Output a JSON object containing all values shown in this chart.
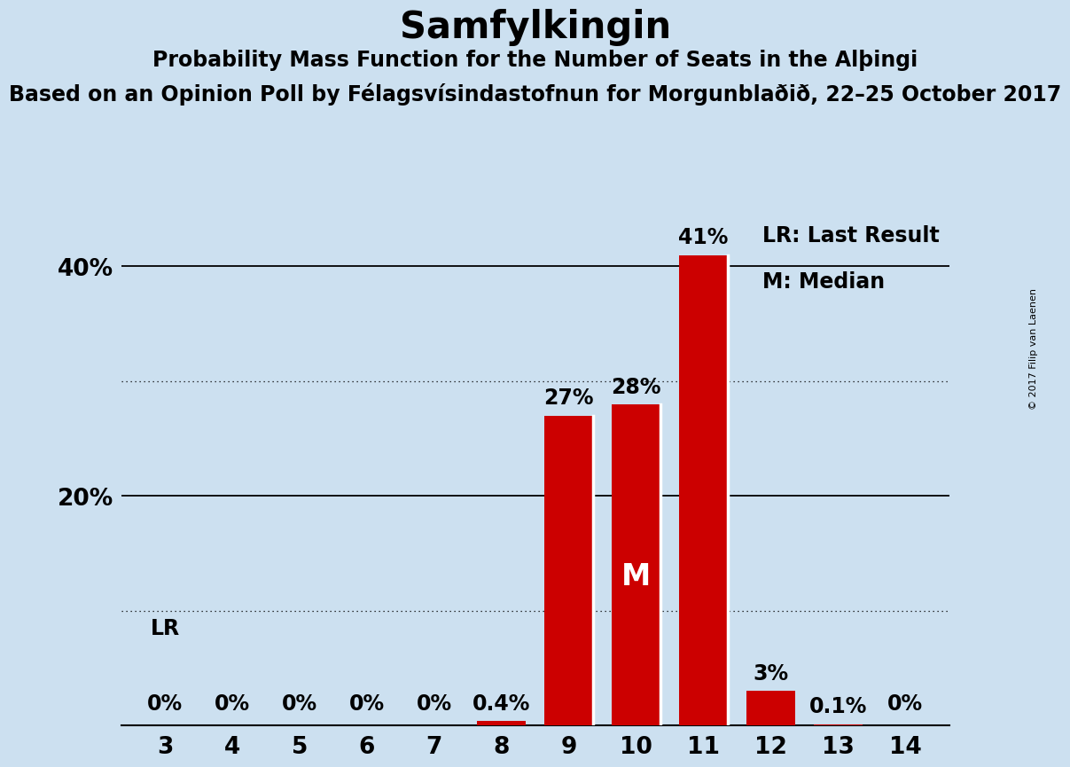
{
  "title": "Samfylkingin",
  "subtitle1": "Probability Mass Function for the Number of Seats in the Alþingi",
  "subtitle2": "Based on an Opinion Poll by Félagsvísindastofnun for Morgunblaðið, 22–25 October 2017",
  "copyright": "© 2017 Filip van Laenen",
  "categories": [
    3,
    4,
    5,
    6,
    7,
    8,
    9,
    10,
    11,
    12,
    13,
    14
  ],
  "values": [
    0.0,
    0.0,
    0.0,
    0.0,
    0.0,
    0.4,
    27.0,
    28.0,
    41.0,
    3.0,
    0.1,
    0.0
  ],
  "bar_color": "#cc0000",
  "background_color": "#cce0f0",
  "label_texts": [
    "0%",
    "0%",
    "0%",
    "0%",
    "0%",
    "0.4%",
    "27%",
    "28%",
    "41%",
    "3%",
    "0.1%",
    "0%"
  ],
  "median_category": 10,
  "last_result_category": 9,
  "ylim": [
    0,
    45
  ],
  "yticks": [
    20,
    40
  ],
  "ytick_labels": [
    "20%",
    "40%"
  ],
  "dotted_lines": [
    10,
    30
  ],
  "solid_lines": [
    20,
    40
  ],
  "legend_lr": "LR: Last Result",
  "legend_m": "M: Median",
  "lr_label": "LR",
  "m_label": "M",
  "title_fontsize": 30,
  "subtitle1_fontsize": 17,
  "subtitle2_fontsize": 17,
  "axis_fontsize": 19,
  "bar_label_fontsize": 17,
  "legend_fontsize": 17,
  "m_label_fontsize": 24,
  "lr_label_fontsize": 17,
  "copyright_fontsize": 8
}
